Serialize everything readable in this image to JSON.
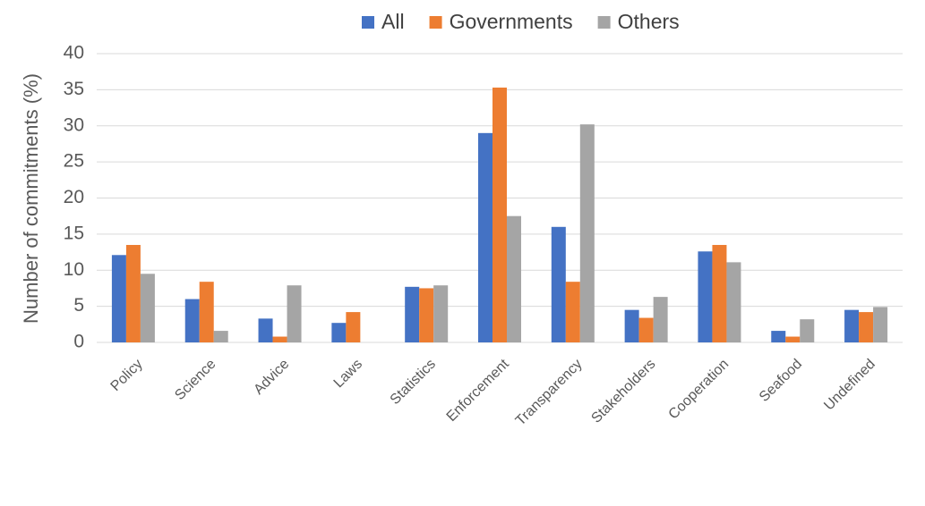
{
  "chart_data": {
    "type": "bar",
    "ylabel": "Number of commitments (%)",
    "categories": [
      "Policy",
      "Science",
      "Advice",
      "Laws",
      "Statistics",
      "Enforcement",
      "Transparency",
      "Stakeholders",
      "Cooperation",
      "Seafood",
      "Undefined"
    ],
    "series": [
      {
        "name": "All",
        "color": "#4472c4",
        "values": [
          12.1,
          6.0,
          3.3,
          2.7,
          7.7,
          29.0,
          16.0,
          4.5,
          12.6,
          1.6,
          4.5
        ]
      },
      {
        "name": "Governments",
        "color": "#ed7d31",
        "values": [
          13.5,
          8.4,
          0.8,
          4.2,
          7.5,
          35.3,
          8.4,
          3.4,
          13.5,
          0.8,
          4.2
        ]
      },
      {
        "name": "Others",
        "color": "#a5a5a5",
        "values": [
          9.5,
          1.6,
          7.9,
          0,
          7.9,
          17.5,
          30.2,
          6.3,
          11.1,
          3.2,
          4.9
        ]
      }
    ],
    "ylim": [
      0,
      40
    ],
    "yticks": [
      0,
      5,
      10,
      15,
      20,
      25,
      30,
      35,
      40
    ],
    "grid": true,
    "legend": "top"
  }
}
